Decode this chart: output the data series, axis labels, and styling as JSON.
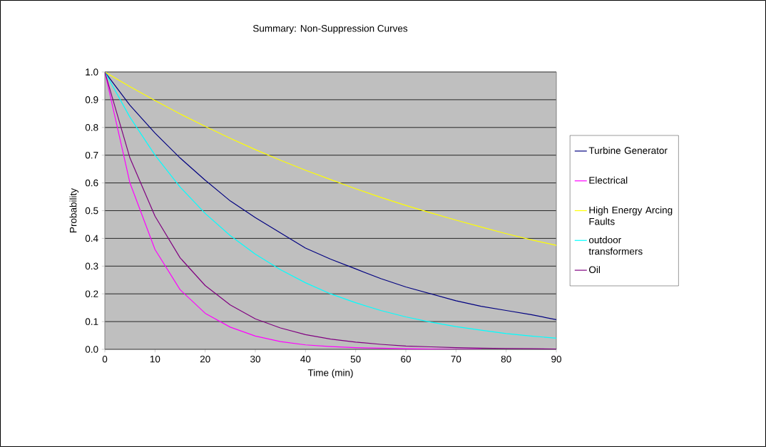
{
  "chart_data": {
    "type": "line",
    "title": "Summary: Non-Suppression Curves",
    "xlabel": "Time (min)",
    "ylabel": "Probability",
    "x": [
      0,
      5,
      10,
      15,
      20,
      25,
      30,
      35,
      40,
      45,
      50,
      55,
      60,
      65,
      70,
      75,
      80,
      85,
      90
    ],
    "series": [
      {
        "name": "Turbine Generator",
        "color": "#000080",
        "values": [
          1.0,
          0.88,
          0.78,
          0.69,
          0.61,
          0.535,
          0.475,
          0.42,
          0.365,
          0.325,
          0.29,
          0.255,
          0.225,
          0.2,
          0.175,
          0.155,
          0.14,
          0.125,
          0.107
        ]
      },
      {
        "name": "Electrical",
        "color": "#ff00ff",
        "values": [
          1.0,
          0.6,
          0.36,
          0.215,
          0.13,
          0.08,
          0.048,
          0.028,
          0.016,
          0.01,
          0.006,
          0.004,
          0.002,
          0.001,
          0.0,
          0.0,
          null,
          null,
          null
        ]
      },
      {
        "name": "High Energy Arcing Faults",
        "color": "#ffff00",
        "values": [
          1.0,
          0.947,
          0.897,
          0.849,
          0.804,
          0.761,
          0.72,
          0.682,
          0.646,
          0.612,
          0.579,
          0.548,
          0.519,
          0.492,
          0.466,
          0.441,
          0.417,
          0.395,
          0.375
        ]
      },
      {
        "name": "outdoor transformers",
        "color": "#00ffff",
        "values": [
          1.0,
          0.837,
          0.7,
          0.585,
          0.49,
          0.41,
          0.343,
          0.287,
          0.24,
          0.2,
          0.168,
          0.14,
          0.117,
          0.098,
          0.082,
          0.069,
          0.057,
          0.048,
          0.04
        ]
      },
      {
        "name": "Oil",
        "color": "#800080",
        "values": [
          1.0,
          0.69,
          0.48,
          0.33,
          0.23,
          0.16,
          0.11,
          0.077,
          0.053,
          0.037,
          0.026,
          0.018,
          0.012,
          0.009,
          0.006,
          0.004,
          0.003,
          0.002,
          0.001
        ]
      }
    ],
    "xlim": [
      0,
      90
    ],
    "ylim": [
      0,
      1
    ],
    "xticks": [
      0,
      10,
      20,
      30,
      40,
      50,
      60,
      70,
      80,
      90
    ],
    "yticks": [
      {
        "value": 0,
        "label": "0.0"
      },
      {
        "value": 0.1,
        "label": "0.1"
      },
      {
        "value": 0.2,
        "label": "0.2"
      },
      {
        "value": 0.3,
        "label": "0.3"
      },
      {
        "value": 0.4,
        "label": "0.4"
      },
      {
        "value": 0.5,
        "label": "0.5"
      },
      {
        "value": 0.6,
        "label": "0.6"
      },
      {
        "value": 0.7,
        "label": "0.7"
      },
      {
        "value": 0.8,
        "label": "0.8"
      },
      {
        "value": 0.9,
        "label": "0.9"
      },
      {
        "value": 1,
        "label": "1.0"
      }
    ],
    "grid": "y",
    "legend": "right",
    "marker": "none",
    "line_style": "solid"
  }
}
